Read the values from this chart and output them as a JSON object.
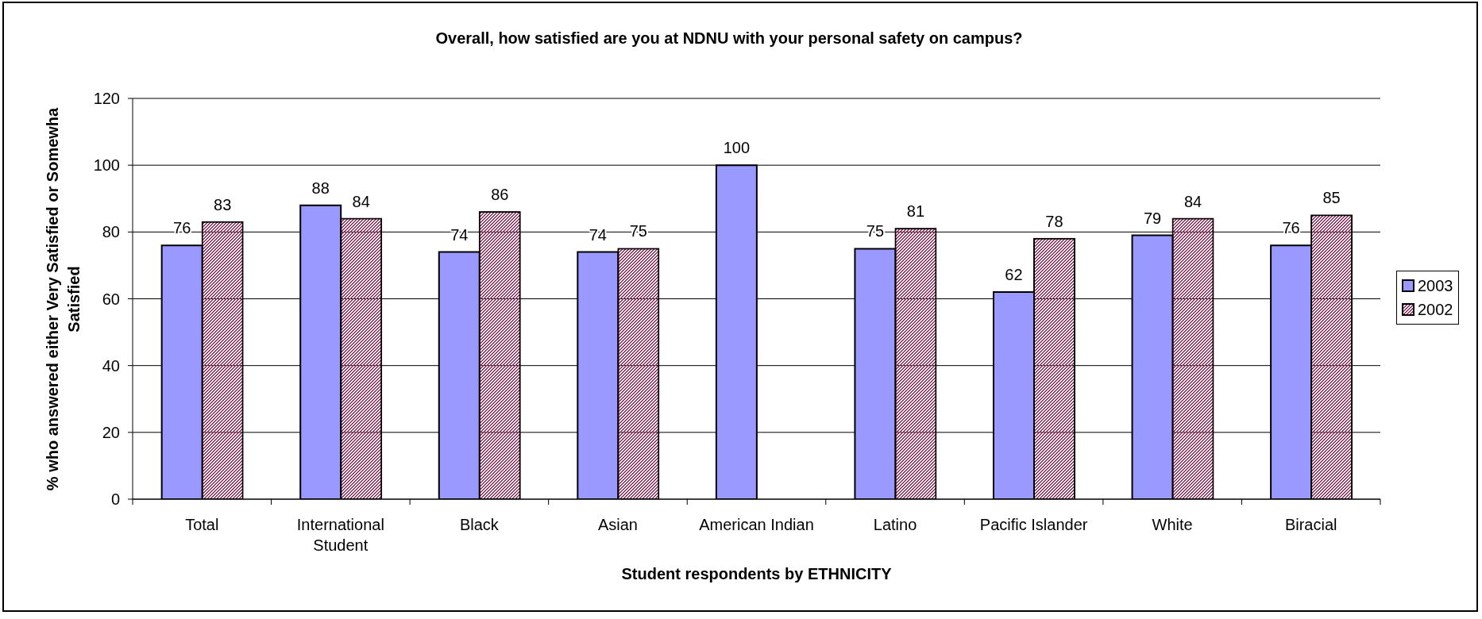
{
  "chart_data": {
    "type": "bar",
    "title": "Overall, how satisfied are you at NDNU with your personal safety on campus?",
    "xlabel": "Student respondents by ETHNICITY",
    "ylabel": "% who answered either Very Satisfied or Somewha Satisfied",
    "categories": [
      "Total",
      "International Student",
      "Black",
      "Asian",
      "American Indian",
      "Latino",
      "Pacific Islander",
      "White",
      "Biracial"
    ],
    "series": [
      {
        "name": "2003",
        "color": "#9999ff",
        "values": [
          76,
          88,
          74,
          74,
          100,
          75,
          62,
          79,
          76
        ]
      },
      {
        "name": "2002",
        "color": "#993366",
        "values": [
          83,
          84,
          86,
          75,
          null,
          81,
          78,
          84,
          85
        ]
      }
    ],
    "ylim": [
      0,
      120
    ],
    "yticks": [
      0,
      20,
      40,
      60,
      80,
      100,
      120
    ],
    "grid": "y",
    "legend": "right",
    "data_labels": true
  }
}
